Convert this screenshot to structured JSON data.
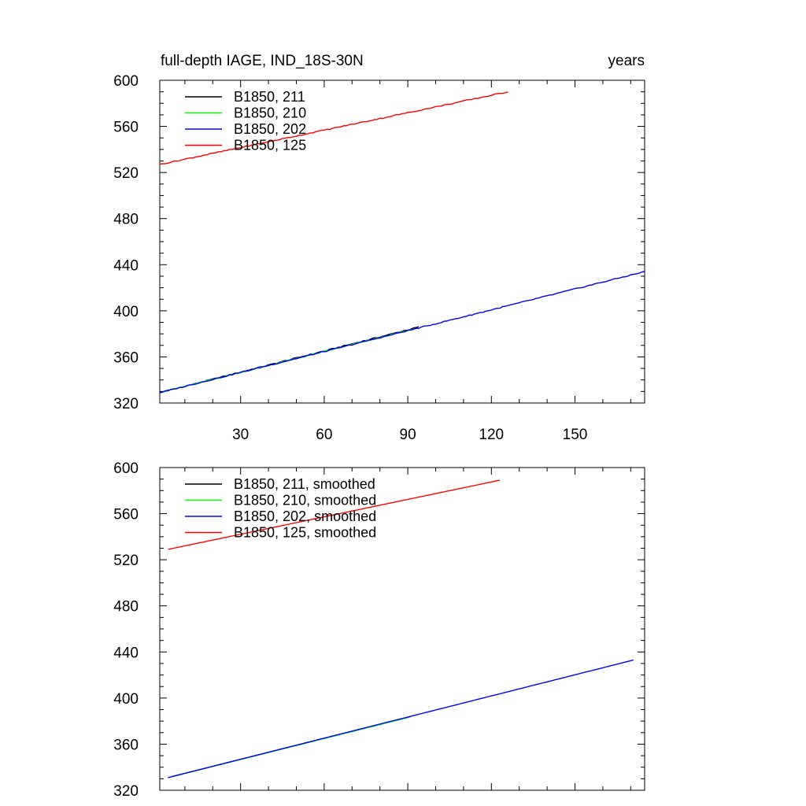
{
  "chart_data": [
    {
      "type": "line",
      "title": "full-depth IAGE, IND_18S-30N",
      "units": "years",
      "xlim": [
        1,
        175
      ],
      "ylim": [
        320,
        600
      ],
      "xticks": [
        30,
        60,
        90,
        120,
        150
      ],
      "yticks": [
        320,
        360,
        400,
        440,
        480,
        520,
        560,
        600
      ],
      "grid": false,
      "legend_position": "top-left",
      "series": [
        {
          "name": "B1850, 211",
          "color": "#000000",
          "x_start": 1,
          "x_end": 94,
          "y_start": 329,
          "y_end": 386
        },
        {
          "name": "B1850, 210",
          "color": "#00ff00",
          "x_start": 1,
          "x_end": 92,
          "y_start": 329,
          "y_end": 384
        },
        {
          "name": "B1850, 202",
          "color": "#0000ff",
          "x_start": 1,
          "x_end": 175,
          "y_start": 329,
          "y_end": 434
        },
        {
          "name": "B1850, 125",
          "color": "#ff0000",
          "x_start": 1,
          "x_end": 126,
          "y_start": 527,
          "y_end": 590
        }
      ]
    },
    {
      "type": "line",
      "title": "",
      "units": "",
      "xlim": [
        1,
        175
      ],
      "ylim": [
        320,
        600
      ],
      "xticks": [
        30,
        60,
        90,
        120,
        150
      ],
      "yticks": [
        320,
        360,
        400,
        440,
        480,
        520,
        560,
        600
      ],
      "grid": false,
      "legend_position": "top-left",
      "series": [
        {
          "name": "B1850, 211, smoothed",
          "color": "#000000",
          "x_start": 4,
          "x_end": 91,
          "y_start": 331,
          "y_end": 384
        },
        {
          "name": "B1850, 210, smoothed",
          "color": "#00ff00",
          "x_start": 4,
          "x_end": 90,
          "y_start": 331,
          "y_end": 383
        },
        {
          "name": "B1850, 202, smoothed",
          "color": "#0000ff",
          "x_start": 4,
          "x_end": 171,
          "y_start": 331,
          "y_end": 433
        },
        {
          "name": "B1850, 125, smoothed",
          "color": "#ff0000",
          "x_start": 4,
          "x_end": 123,
          "y_start": 529,
          "y_end": 589
        }
      ]
    }
  ]
}
